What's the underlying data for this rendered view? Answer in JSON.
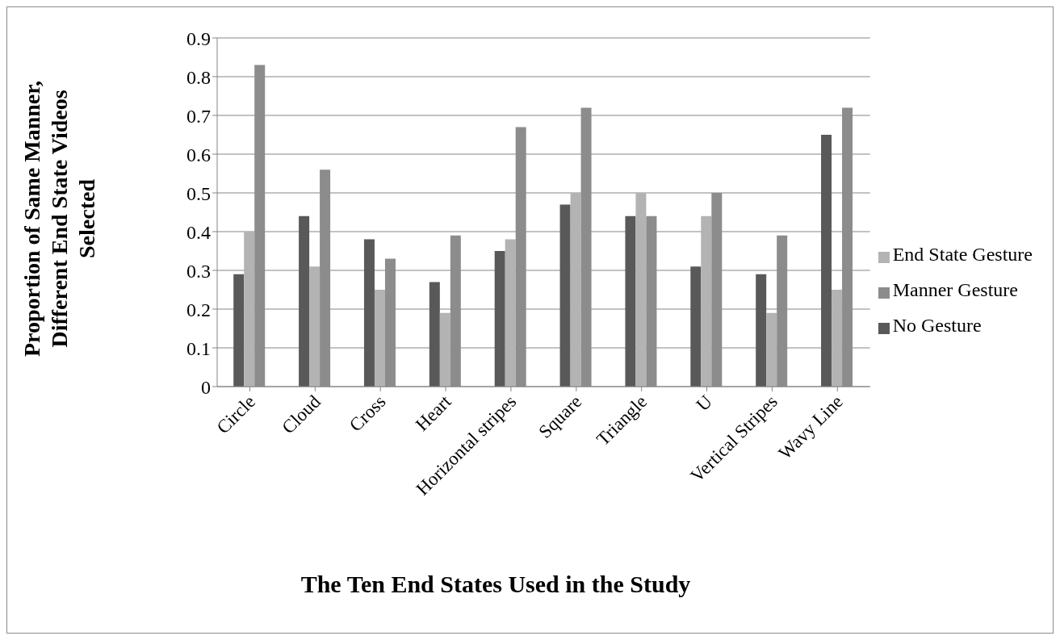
{
  "chart_data": {
    "type": "bar",
    "xlabel": "The Ten End States Used in the Study",
    "ylabel": "Proportion of Same Manner, Different End State Videos Selected",
    "categories": [
      "Circle",
      "Cloud",
      "Cross",
      "Heart",
      "Horizontal stripes",
      "Square",
      "Triangle",
      "U",
      "Vertical Stripes",
      "Wavy Line"
    ],
    "series": [
      {
        "name": "No Gesture",
        "color": "#595959",
        "values": [
          0.29,
          0.44,
          0.38,
          0.27,
          0.35,
          0.47,
          0.44,
          0.31,
          0.29,
          0.65
        ]
      },
      {
        "name": "End State Gesture",
        "color": "#b3b3b3",
        "values": [
          0.4,
          0.31,
          0.25,
          0.19,
          0.38,
          0.5,
          0.5,
          0.44,
          0.19,
          0.25
        ]
      },
      {
        "name": "Manner Gesture",
        "color": "#8c8c8c",
        "values": [
          0.83,
          0.56,
          0.33,
          0.39,
          0.67,
          0.72,
          0.44,
          0.5,
          0.39,
          0.72
        ]
      }
    ],
    "ylim": [
      0,
      0.9
    ],
    "yticks": [
      0,
      0.1,
      0.2,
      0.3,
      0.4,
      0.5,
      0.6,
      0.7,
      0.8,
      0.9
    ],
    "grid": "y",
    "legend": "right"
  }
}
